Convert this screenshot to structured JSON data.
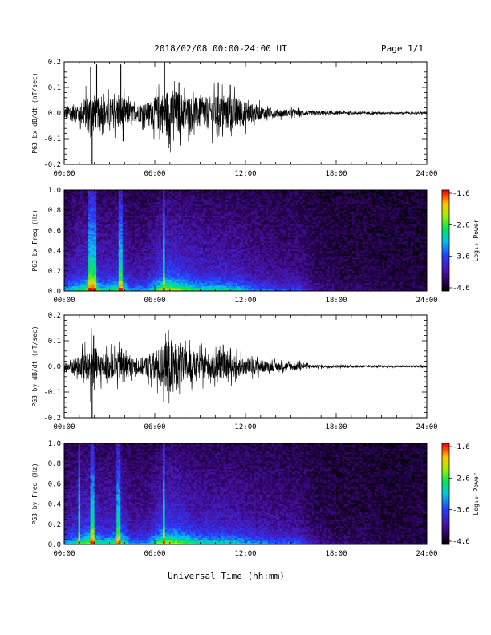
{
  "header": {
    "title": "2018/02/08  00:00-24:00 UT",
    "page": "Page 1/1"
  },
  "footer": {
    "xlabel": "Universal Time (hh:mm)"
  },
  "chart_data": [
    {
      "type": "line",
      "ylabel": "PG3 bx dB/dt (nT/sec)",
      "xlim": [
        0,
        24
      ],
      "ylim": [
        -0.2,
        0.2
      ],
      "x_ticks": [
        "00:00",
        "06:00",
        "12:00",
        "18:00",
        "24:00"
      ],
      "y_ticks": [
        "-0.2",
        "-0.1",
        "0.0",
        "0.1",
        "0.2"
      ],
      "envelope_hours": [
        0,
        1,
        1.8,
        2.5,
        3.2,
        3.8,
        4.5,
        5.5,
        6.5,
        7.0,
        8.0,
        9.0,
        10.5,
        11.5,
        12.5,
        13.5,
        14.5,
        15.5,
        16.5,
        18,
        20,
        22,
        24
      ],
      "envelope_amp": [
        0.025,
        0.04,
        0.08,
        0.05,
        0.06,
        0.07,
        0.03,
        0.04,
        0.08,
        0.1,
        0.07,
        0.06,
        0.07,
        0.06,
        0.035,
        0.02,
        0.015,
        0.012,
        0.008,
        0.006,
        0.005,
        0.004,
        0.004
      ],
      "spikes": [
        {
          "t": 1.75,
          "v": 0.18
        },
        {
          "t": 1.85,
          "v": -0.22
        },
        {
          "t": 2.15,
          "v": 0.19
        },
        {
          "t": 3.75,
          "v": 0.19
        },
        {
          "t": 3.9,
          "v": -0.11
        },
        {
          "t": 6.65,
          "v": 0.2
        },
        {
          "t": 7.0,
          "v": -0.12
        },
        {
          "t": 7.6,
          "v": 0.12
        },
        {
          "t": 10.2,
          "v": 0.12
        },
        {
          "t": 11.0,
          "v": 0.11
        }
      ]
    },
    {
      "type": "heatmap",
      "ylabel": "PG3 bx Freq (Hz)",
      "xlim": [
        0,
        24
      ],
      "ylim": [
        0,
        1.0
      ],
      "x_ticks": [
        "00:00",
        "06:00",
        "12:00",
        "18:00",
        "24:00"
      ],
      "y_ticks": [
        "0.0",
        "0.2",
        "0.4",
        "0.6",
        "0.8",
        "1.0"
      ],
      "colorbar": {
        "label": "Log₁₀ Power",
        "min": -4.6,
        "max": -1.6,
        "ticks": [
          "-1.6",
          "-2.6",
          "-3.6",
          "-4.6"
        ]
      },
      "activity_hours": [
        0,
        1,
        1.8,
        2.5,
        3.2,
        3.8,
        4.5,
        5.5,
        6.5,
        7.0,
        8.0,
        9.0,
        10.5,
        11.5,
        12.5,
        13.5,
        14.5,
        15.5,
        16.5,
        18,
        20,
        22,
        24
      ],
      "activity_level": [
        0.55,
        0.75,
        0.95,
        0.7,
        0.75,
        0.85,
        0.5,
        0.55,
        0.95,
        1.0,
        0.85,
        0.7,
        0.7,
        0.65,
        0.5,
        0.45,
        0.4,
        0.42,
        0.2,
        0.1,
        0.08,
        0.05,
        0.05
      ],
      "vertical_bands": [
        1.7,
        2.05,
        3.7,
        6.6
      ]
    },
    {
      "type": "line",
      "ylabel": "PG3 by dB/dt (nT/sec)",
      "xlim": [
        0,
        24
      ],
      "ylim": [
        -0.2,
        0.2
      ],
      "x_ticks": [
        "00:00",
        "06:00",
        "12:00",
        "18:00",
        "24:00"
      ],
      "y_ticks": [
        "-0.2",
        "-0.1",
        "0.0",
        "0.1",
        "0.2"
      ],
      "envelope_hours": [
        0,
        1,
        1.8,
        2.5,
        3.2,
        3.8,
        4.5,
        5.5,
        6.5,
        7.0,
        8.0,
        9.0,
        10.5,
        11.5,
        12.5,
        13.5,
        14.5,
        15.5,
        16.5,
        18,
        20,
        22,
        24
      ],
      "envelope_amp": [
        0.02,
        0.04,
        0.09,
        0.05,
        0.05,
        0.06,
        0.03,
        0.04,
        0.08,
        0.11,
        0.07,
        0.05,
        0.05,
        0.04,
        0.03,
        0.02,
        0.015,
        0.015,
        0.006,
        0.005,
        0.004,
        0.004,
        0.004
      ],
      "spikes": [
        {
          "t": 1.85,
          "v": -0.22
        },
        {
          "t": 1.95,
          "v": 0.12
        },
        {
          "t": 6.9,
          "v": 0.14
        },
        {
          "t": 7.1,
          "v": -0.07
        },
        {
          "t": 3.8,
          "v": 0.07
        }
      ]
    },
    {
      "type": "heatmap",
      "ylabel": "PG3 by Freq (Hz)",
      "xlim": [
        0,
        24
      ],
      "ylim": [
        0,
        1.0
      ],
      "x_ticks": [
        "00:00",
        "06:00",
        "12:00",
        "18:00",
        "24:00"
      ],
      "y_ticks": [
        "0.0",
        "0.2",
        "0.4",
        "0.6",
        "0.8",
        "1.0"
      ],
      "colorbar": {
        "label": "Log₁₀ Power",
        "min": -4.6,
        "max": -1.6,
        "ticks": [
          "-1.6",
          "-2.6",
          "-3.6",
          "-4.6"
        ]
      },
      "activity_hours": [
        0,
        1,
        1.8,
        2.5,
        3.2,
        3.8,
        4.5,
        5.5,
        6.5,
        7.0,
        8.0,
        9.0,
        10.5,
        11.5,
        12.5,
        13.5,
        14.5,
        15.5,
        16.5,
        18,
        20,
        22,
        24
      ],
      "activity_level": [
        0.55,
        0.75,
        0.95,
        0.7,
        0.75,
        0.85,
        0.5,
        0.55,
        0.95,
        1.0,
        0.85,
        0.7,
        0.7,
        0.65,
        0.55,
        0.5,
        0.45,
        0.45,
        0.2,
        0.1,
        0.08,
        0.05,
        0.05
      ],
      "vertical_bands": [
        1.0,
        1.9,
        3.6,
        6.6
      ]
    }
  ]
}
